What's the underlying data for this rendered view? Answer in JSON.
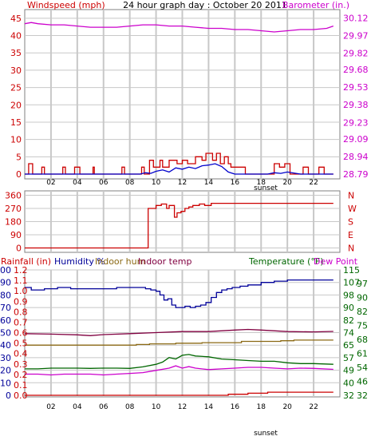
{
  "title": "24 hour graph day : October 20 2011",
  "colors": {
    "wind": "#cc0000",
    "wind_avg": "#0000cc",
    "baro": "#cc00cc",
    "dir": "#cc0000",
    "humidity": "#000099",
    "indoor_hum": "#8b6914",
    "indoor_temp": "#800040",
    "temperature": "#006600",
    "dew": "#cc00cc",
    "rain": "#cc0000",
    "grid": "#c8c8c8",
    "tick": "#000000"
  },
  "chart_data": [
    {
      "type": "line",
      "x_ticks": [
        "02",
        "04",
        "06",
        "08",
        "10",
        "12",
        "14",
        "16",
        "18",
        "20",
        "22"
      ],
      "x_label": "sunset",
      "grid": true,
      "left_axis": {
        "label": "Windspeed (mph)",
        "ticks": [
          "0",
          "5",
          "10",
          "15",
          "20",
          "25",
          "30",
          "35",
          "40",
          "45"
        ],
        "range": [
          0,
          47.5
        ]
      },
      "right_axis": {
        "label": "Barometer (in.)",
        "ticks": [
          "28.79",
          "28.94",
          "29.09",
          "29.23",
          "29.38",
          "29.53",
          "29.68",
          "29.82",
          "29.97",
          "30.12"
        ],
        "range": [
          28.79,
          30.19
        ]
      },
      "series": [
        {
          "key": "barometer",
          "axis": "right",
          "step": false,
          "x": [
            0,
            0.5,
            1,
            2,
            3,
            4,
            5,
            6,
            7,
            8,
            9,
            10,
            11,
            12,
            13,
            14,
            15,
            16,
            17,
            18,
            19,
            20,
            21,
            22,
            23,
            23.5
          ],
          "y": [
            30.07,
            30.08,
            30.07,
            30.06,
            30.06,
            30.05,
            30.04,
            30.04,
            30.04,
            30.05,
            30.06,
            30.06,
            30.05,
            30.05,
            30.04,
            30.03,
            30.03,
            30.02,
            30.02,
            30.01,
            30.0,
            30.01,
            30.02,
            30.02,
            30.03,
            30.05
          ]
        },
        {
          "key": "wind_gust",
          "axis": "left",
          "step": true,
          "x": [
            0,
            0.3,
            0.6,
            1.3,
            1.5,
            2.9,
            3.1,
            3.8,
            4.2,
            5.2,
            5.3,
            7.4,
            7.6,
            8.9,
            9.1,
            9.5,
            9.8,
            10.3,
            10.5,
            11,
            11.6,
            12,
            12.4,
            13,
            13.5,
            13.8,
            14.3,
            14.6,
            14.9,
            15.2,
            15.5,
            15.7,
            16.8,
            17,
            18.8,
            19,
            19.4,
            19.8,
            20.2,
            21.2,
            21.6,
            22.4,
            22.8,
            23.5
          ],
          "y": [
            0,
            3,
            0,
            2,
            0,
            2,
            0,
            2,
            0,
            2,
            0,
            2,
            0,
            2,
            0,
            4,
            2,
            4,
            2,
            4,
            3,
            4,
            3,
            5,
            4,
            6,
            4,
            6,
            3,
            5,
            3,
            2,
            0,
            0,
            0,
            3,
            2,
            3,
            0,
            2,
            0,
            2,
            0,
            0
          ]
        },
        {
          "key": "wind_avg",
          "axis": "left",
          "step": false,
          "x": [
            0,
            8.8,
            9.2,
            9.6,
            10,
            10.5,
            11,
            11.5,
            12,
            12.5,
            13,
            13.5,
            14,
            14.5,
            15,
            15.5,
            16,
            18.5,
            19,
            19.5,
            20,
            21,
            23.5
          ],
          "y": [
            0,
            0,
            0.4,
            0.2,
            0.8,
            1.2,
            0.6,
            1.8,
            1.4,
            2.0,
            1.6,
            2.4,
            2.6,
            3.0,
            2.2,
            0.6,
            0,
            0,
            0.4,
            0.2,
            0.6,
            0,
            0
          ]
        }
      ]
    },
    {
      "type": "line",
      "x_ticks": [],
      "grid": true,
      "left_axis": {
        "ticks": [
          "0",
          "90",
          "180",
          "270",
          "360"
        ],
        "range": [
          -30,
          390
        ]
      },
      "right_axis": {
        "ticks": [
          "N",
          "W",
          "S",
          "E",
          "N"
        ]
      },
      "series": [
        {
          "key": "wind_direction",
          "axis": "left",
          "step": true,
          "x": [
            0,
            9.3,
            9.4,
            10,
            10.4,
            10.8,
            11,
            11.4,
            11.6,
            11.9,
            12.2,
            12.5,
            12.8,
            13.3,
            13.7,
            14.2,
            23.5
          ],
          "y": [
            0,
            0,
            270,
            290,
            300,
            270,
            290,
            210,
            240,
            250,
            270,
            280,
            290,
            300,
            290,
            305,
            305
          ]
        }
      ]
    },
    {
      "type": "line",
      "x_ticks": [
        "02",
        "04",
        "06",
        "08",
        "10",
        "12",
        "14",
        "16",
        "18",
        "20",
        "22"
      ],
      "x_label": "sunset",
      "grid": true,
      "header_left": [
        "Rainfall (in)",
        "Humidity %",
        "Indoor hum",
        "Indoor temp"
      ],
      "header_right": [
        "Temperature (°F)",
        "Dew Point"
      ],
      "axis_rain": {
        "ticks": [
          "0.0",
          "0.1",
          "0.2",
          "0.3",
          "0.4",
          "0.5",
          "0.6",
          "0.7",
          "0.8",
          "0.9",
          "1.0",
          "1.1",
          "1.2"
        ]
      },
      "axis_humidity": {
        "ticks": [
          "0",
          "10",
          "20",
          "30",
          "40",
          "50",
          "60",
          "70",
          "80",
          "90",
          "100"
        ],
        "range": [
          0,
          100
        ]
      },
      "axis_temp_a": {
        "ticks": [
          "32",
          "40",
          "49",
          "57",
          "65",
          "74",
          "82",
          "90",
          "98",
          "107",
          "115"
        ]
      },
      "axis_temp_b": {
        "ticks": [
          "32",
          "46",
          "54",
          "61",
          "68",
          "75",
          "82",
          "90",
          "97"
        ]
      },
      "temp_range": [
        32,
        115
      ],
      "series": [
        {
          "key": "humidity",
          "axis": "humidity",
          "step": true,
          "x": [
            0,
            0.5,
            1.5,
            2.5,
            3.5,
            5,
            6,
            7,
            8,
            8.8,
            9.2,
            9.6,
            10,
            10.3,
            10.6,
            10.9,
            11.2,
            11.5,
            11.8,
            12.2,
            12.6,
            13,
            13.4,
            13.8,
            14.2,
            14.6,
            15,
            15.4,
            15.8,
            16.4,
            17,
            18,
            19,
            20,
            23.5
          ],
          "y": [
            86,
            84,
            85,
            86,
            85,
            85,
            85,
            86,
            86,
            86,
            85,
            84,
            83,
            80,
            76,
            77,
            72,
            70,
            70,
            71,
            70,
            71,
            72,
            74,
            78,
            82,
            84,
            85,
            86,
            87,
            88,
            90,
            91,
            92,
            92
          ]
        },
        {
          "key": "indoor_temp",
          "axis": "temp",
          "step": false,
          "x": [
            0,
            2,
            4,
            5,
            6,
            8,
            10,
            12,
            14,
            16,
            17,
            18,
            20,
            22,
            23.5
          ],
          "y": [
            72.8,
            72.5,
            72.0,
            71.5,
            72.2,
            72.8,
            73.5,
            74.2,
            74.2,
            75.2,
            75.6,
            75.2,
            74.2,
            74.0,
            74.3
          ]
        },
        {
          "key": "indoor_hum",
          "axis": "humidity",
          "step": true,
          "x": [
            0,
            7.5,
            8.5,
            9.5,
            10.5,
            11.5,
            12.5,
            13.5,
            14.5,
            15.5,
            16.5,
            17.5,
            18.5,
            19.5,
            20.5,
            23.5
          ],
          "y": [
            40,
            40,
            40.5,
            41,
            41,
            41.5,
            41.5,
            42,
            42,
            42,
            43,
            43,
            43,
            43.5,
            44,
            44
          ]
        },
        {
          "key": "temperature",
          "axis": "temp",
          "step": false,
          "x": [
            0,
            1,
            2,
            3,
            4,
            5,
            6,
            7,
            8,
            9,
            10,
            10.5,
            11,
            11.5,
            12,
            12.5,
            13,
            14,
            15,
            16,
            17,
            18,
            19,
            20,
            21,
            22,
            23.5
          ],
          "y": [
            49.5,
            49.5,
            50,
            50,
            50,
            49.8,
            50,
            50,
            49.8,
            50.8,
            52.5,
            54,
            57,
            56,
            58.5,
            59,
            58,
            57.5,
            56,
            55.5,
            55,
            54.5,
            54.5,
            53.5,
            53,
            53,
            52.5
          ]
        },
        {
          "key": "dew_point",
          "axis": "temp",
          "step": false,
          "x": [
            0,
            1,
            2,
            3,
            4,
            5,
            6,
            7,
            8,
            9,
            10,
            11,
            11.5,
            12,
            12.5,
            13,
            14,
            15,
            16,
            17,
            18,
            19,
            20,
            21,
            22,
            23.5
          ],
          "y": [
            46,
            46,
            45.5,
            46,
            46,
            46,
            45.5,
            46,
            46.5,
            47,
            48.5,
            50,
            51.5,
            50,
            51,
            50,
            49,
            49.5,
            50,
            50.5,
            50.5,
            50,
            49.5,
            50,
            49.8,
            49.2
          ]
        },
        {
          "key": "rainfall",
          "axis": "rain",
          "step": true,
          "x": [
            0,
            14,
            15.5,
            17,
            18.5,
            19.5,
            23.5
          ],
          "y": [
            0,
            0,
            0.01,
            0.02,
            0.03,
            0.03,
            0.03
          ]
        }
      ]
    }
  ]
}
